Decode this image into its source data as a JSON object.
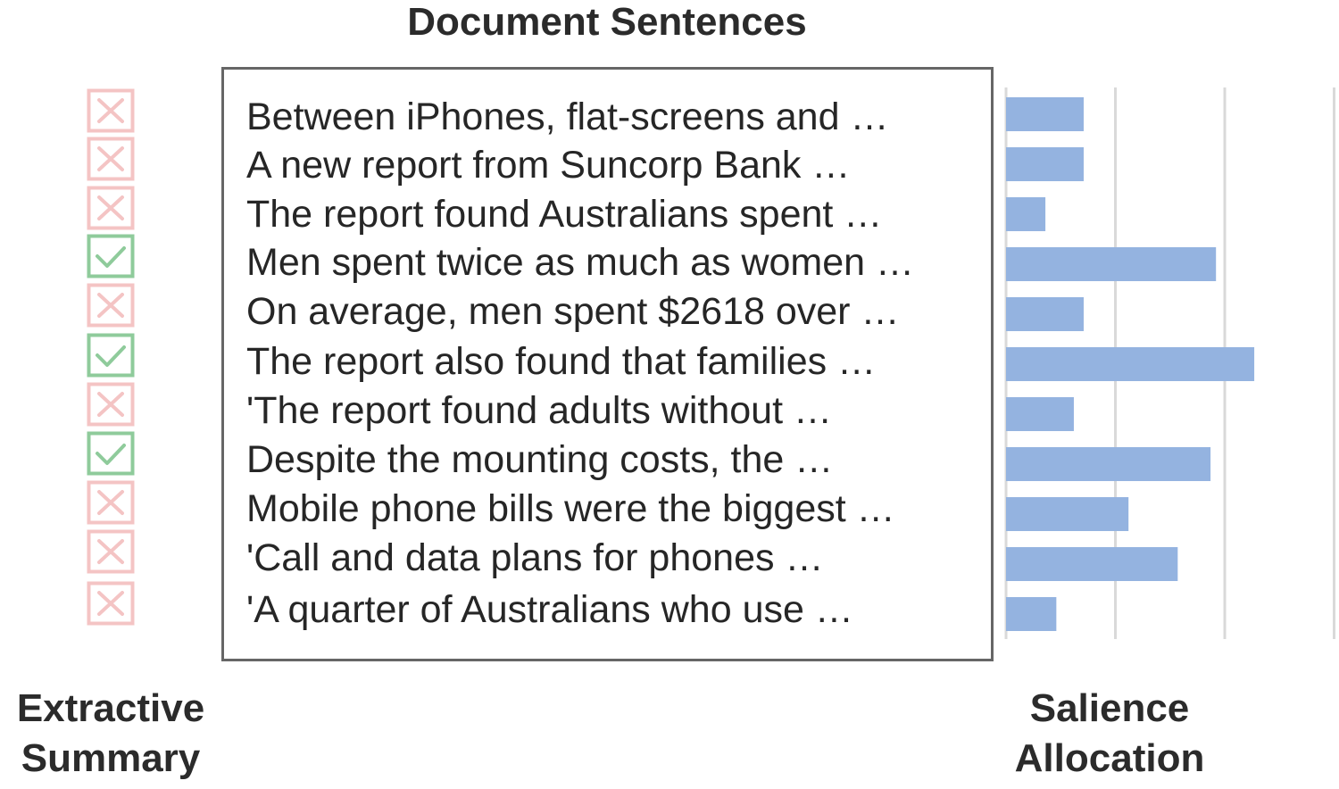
{
  "title": "Document Sentences",
  "left_label": [
    "Extractive",
    "Summary"
  ],
  "right_label": [
    "Salience",
    "Allocation"
  ],
  "colors": {
    "reject": "#f4c4c4",
    "accept": "#8fcb9b",
    "bar": "#94b3e0",
    "grid": "#d9d9d9",
    "box": "#666666"
  },
  "sentences": [
    {
      "text": "Between iPhones, flat-screens and …",
      "selected": false,
      "icon": "x-icon"
    },
    {
      "text": "A new report from Suncorp Bank …",
      "selected": false,
      "icon": "x-icon"
    },
    {
      "text": "The report found Australians spent …",
      "selected": false,
      "icon": "x-icon"
    },
    {
      "text": "Men spent twice as much as women …",
      "selected": true,
      "icon": "check-icon"
    },
    {
      "text": "On average, men spent $2618 over …",
      "selected": false,
      "icon": "x-icon"
    },
    {
      "text": "The report also found that families …",
      "selected": true,
      "icon": "check-icon"
    },
    {
      "text": "'The report found adults without …",
      "selected": false,
      "icon": "x-icon"
    },
    {
      "text": "Despite the mounting costs, the …",
      "selected": true,
      "icon": "check-icon"
    },
    {
      "text": "Mobile phone bills were the biggest …",
      "selected": false,
      "icon": "x-icon"
    },
    {
      "text": "'Call and data plans for phones …",
      "selected": false,
      "icon": "x-icon"
    },
    {
      "text": "'A quarter of Australians who use …",
      "selected": false,
      "icon": "x-icon"
    }
  ],
  "chart_data": {
    "type": "bar",
    "orientation": "horizontal",
    "categories": [
      "Between iPhones, flat-screens and …",
      "A new report from Suncorp Bank …",
      "The report found Australians spent …",
      "Men spent twice as much as women …",
      "On average, men spent $2618 over …",
      "The report also found that families …",
      "'The report found adults without …",
      "Despite the mounting costs, the …",
      "Mobile phone bills were the biggest …",
      "'Call and data plans for phones …",
      "'A quarter of Australians who use …"
    ],
    "values": [
      0.71,
      0.71,
      0.36,
      1.92,
      0.71,
      2.27,
      0.62,
      1.87,
      1.12,
      1.57,
      0.46
    ],
    "xlim": [
      0,
      3
    ],
    "gridlines": [
      0,
      1,
      2,
      3
    ],
    "grid": true,
    "title": "",
    "xlabel": "",
    "ylabel": ""
  }
}
